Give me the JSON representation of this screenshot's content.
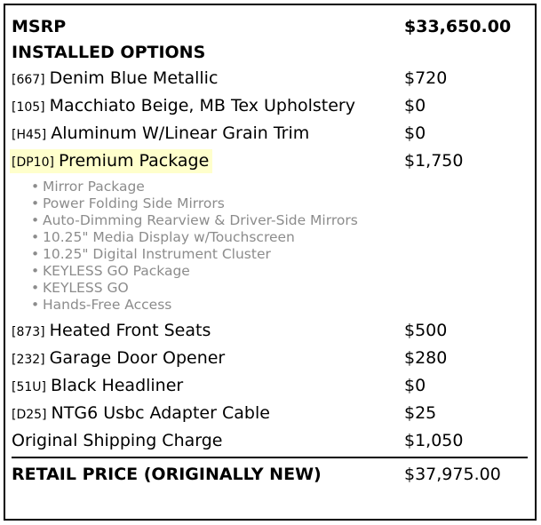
{
  "theme": {
    "highlight": "#ffffcc",
    "muted": "#8c8c8c",
    "border": "#000000"
  },
  "doc": {
    "msrp": {
      "label": "MSRP",
      "price": "$33,650.00"
    },
    "section_title": "INSTALLED OPTIONS",
    "options": [
      {
        "code": "[667]",
        "name": "Denim Blue Metallic",
        "price": "$720"
      },
      {
        "code": "[105]",
        "name": "Macchiato Beige, MB Tex Upholstery",
        "price": "$0"
      },
      {
        "code": "[H45]",
        "name": "Aluminum W/Linear Grain Trim",
        "price": "$0"
      },
      {
        "code": "[DP10]",
        "name": "Premium Package",
        "price": "$1,750",
        "highlighted": true,
        "features": [
          "Mirror Package",
          "Power Folding Side Mirrors",
          "Auto-Dimming Rearview & Driver-Side Mirrors",
          "10.25\" Media Display w/Touchscreen",
          "10.25\" Digital Instrument Cluster",
          "KEYLESS GO Package",
          "KEYLESS GO",
          "Hands-Free Access"
        ],
        "bullet_glyph": "•"
      },
      {
        "code": "[873]",
        "name": "Heated Front Seats",
        "price": "$500"
      },
      {
        "code": "[232]",
        "name": "Garage Door Opener",
        "price": "$280"
      },
      {
        "code": "[51U]",
        "name": "Black Headliner",
        "price": "$0"
      },
      {
        "code": "[D25]",
        "name": "NTG6 Usbc Adapter Cable",
        "price": "$25"
      }
    ],
    "shipping": {
      "name": "Original Shipping Charge",
      "price": "$1,050"
    },
    "total": {
      "label": "RETAIL PRICE (ORIGINALLY NEW)",
      "price": "$37,975.00"
    }
  }
}
